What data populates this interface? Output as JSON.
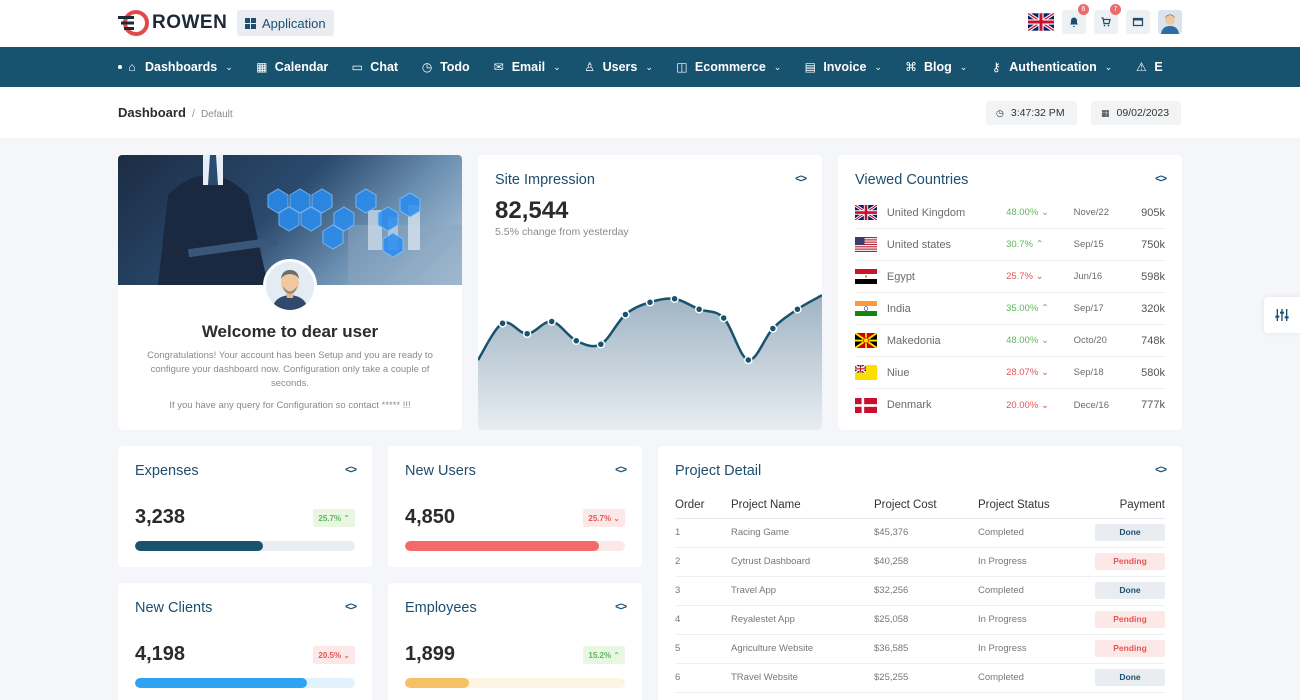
{
  "brand": {
    "name": "ROWEN"
  },
  "header": {
    "app_button": "Application",
    "notif_count": "6",
    "cart_count": "7"
  },
  "nav": [
    {
      "label": "Dashboards",
      "icon": "home-icon",
      "chev": true
    },
    {
      "label": "Calendar",
      "icon": "calendar-icon",
      "chev": false
    },
    {
      "label": "Chat",
      "icon": "chat-icon",
      "chev": false
    },
    {
      "label": "Todo",
      "icon": "clock-icon",
      "chev": false
    },
    {
      "label": "Email",
      "icon": "mail-icon",
      "chev": true
    },
    {
      "label": "Users",
      "icon": "user-icon",
      "chev": true
    },
    {
      "label": "Ecommerce",
      "icon": "shopping-bag-icon",
      "chev": true
    },
    {
      "label": "Invoice",
      "icon": "document-icon",
      "chev": true
    },
    {
      "label": "Blog",
      "icon": "command-icon",
      "chev": true
    },
    {
      "label": "Authentication",
      "icon": "key-icon",
      "chev": true
    },
    {
      "label": "E",
      "icon": "warning-icon",
      "chev": false
    }
  ],
  "breadcrumb": {
    "main": "Dashboard",
    "sep": "/",
    "sub": "Default"
  },
  "clock": {
    "time": "3:47:32 PM",
    "date": "09/02/2023"
  },
  "welcome": {
    "title": "Welcome to dear user",
    "text": "Congratulations! Your account has been Setup and you are ready to configure your dashboard now. Configuration only take a couple of seconds.",
    "note": "If you have any query for Configuration so contact ***** !!!"
  },
  "impression": {
    "title": "Site Impression",
    "value": "82,544",
    "sub": "5.5% change from yesterday",
    "trend": [
      40,
      61,
      55,
      62,
      51,
      49,
      66,
      73,
      75,
      69,
      64,
      40,
      58,
      69,
      77
    ]
  },
  "countries": {
    "title": "Viewed Countries",
    "rows": [
      {
        "flag": "uk",
        "name": "United Kingdom",
        "pct": "48.00%",
        "dir": "down",
        "color": "#5cb85c",
        "date": "Nove/22",
        "value": "905k"
      },
      {
        "flag": "us",
        "name": "United states",
        "pct": "30.7%",
        "dir": "up",
        "color": "#5cb85c",
        "date": "Sep/15",
        "value": "750k"
      },
      {
        "flag": "eg",
        "name": "Egypt",
        "pct": "25.7%",
        "dir": "down",
        "color": "#e25656",
        "date": "Jun/16",
        "value": "598k"
      },
      {
        "flag": "in",
        "name": "India",
        "pct": "35.00%",
        "dir": "up",
        "color": "#5cb85c",
        "date": "Sep/17",
        "value": "320k"
      },
      {
        "flag": "mk",
        "name": "Makedonia",
        "pct": "48.00%",
        "dir": "down",
        "color": "#5cb85c",
        "date": "Octo/20",
        "value": "748k"
      },
      {
        "flag": "nu",
        "name": "Niue",
        "pct": "28.07%",
        "dir": "down",
        "color": "#e25656",
        "date": "Sep/18",
        "value": "580k"
      },
      {
        "flag": "dk",
        "name": "Denmark",
        "pct": "20.00%",
        "dir": "down",
        "color": "#e25656",
        "date": "Dece/16",
        "value": "777k"
      }
    ]
  },
  "stats": [
    {
      "title": "Expenses",
      "value": "3,238",
      "pill": "25.7%",
      "dir": "up",
      "fill": 0.58,
      "fill_color": "#17526f",
      "track_color": "#e9edf1"
    },
    {
      "title": "New Users",
      "value": "4,850",
      "pill": "25.7%",
      "dir": "down",
      "fill": 0.88,
      "fill_color": "#f46a6a",
      "track_color": "#fde8e8"
    },
    {
      "title": "New Clients",
      "value": "4,198",
      "pill": "20.5%",
      "dir": "down",
      "fill": 0.78,
      "fill_color": "#2ea3f2",
      "track_color": "#e2f2fd"
    },
    {
      "title": "Employees",
      "value": "1,899",
      "pill": "15.2%",
      "dir": "up",
      "fill": 0.29,
      "fill_color": "#f6c065",
      "track_color": "#fdf4e3"
    }
  ],
  "project": {
    "title": "Project Detail",
    "headers": [
      "Order",
      "Project Name",
      "Project Cost",
      "Project Status",
      "Payment"
    ],
    "rows": [
      {
        "order": "1",
        "name": "Racing Game",
        "cost": "$45,376",
        "status": "Completed",
        "payment": "Done"
      },
      {
        "order": "2",
        "name": "Cytrust Dashboard",
        "cost": "$40,258",
        "status": "In Progress",
        "payment": "Pending"
      },
      {
        "order": "3",
        "name": "Travel App",
        "cost": "$32,256",
        "status": "Completed",
        "payment": "Done"
      },
      {
        "order": "4",
        "name": "Reyalestet App",
        "cost": "$25,058",
        "status": "In Progress",
        "payment": "Pending"
      },
      {
        "order": "5",
        "name": "Agriculture Website",
        "cost": "$36,585",
        "status": "In Progress",
        "payment": "Pending"
      },
      {
        "order": "6",
        "name": "TRavel Website",
        "cost": "$25,255",
        "status": "Completed",
        "payment": "Done"
      }
    ]
  }
}
